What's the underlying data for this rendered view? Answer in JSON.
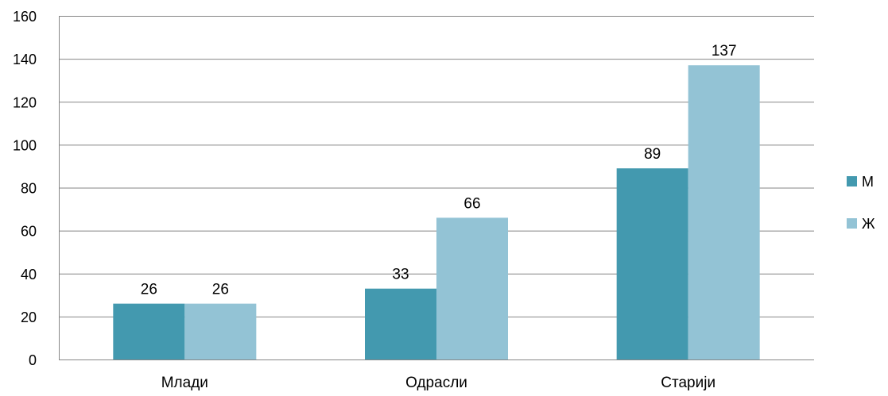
{
  "chart_data": {
    "type": "bar",
    "categories": [
      "Млади",
      "Одрасли",
      "Старији"
    ],
    "series": [
      {
        "name": "М",
        "values": [
          26,
          33,
          89
        ],
        "color": "#4399AF"
      },
      {
        "name": "Ж",
        "values": [
          26,
          66,
          137
        ],
        "color": "#93C3D5"
      }
    ],
    "ylim": [
      0,
      160
    ],
    "yticks": [
      0,
      20,
      40,
      60,
      80,
      100,
      120,
      140,
      160
    ],
    "grid": true,
    "gridline_color": "#868686",
    "legend": "right",
    "data_labels": true
  }
}
